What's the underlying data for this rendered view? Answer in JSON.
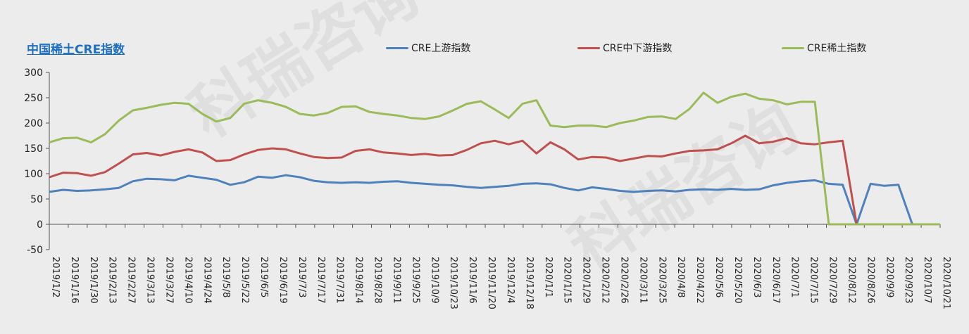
{
  "title": "中国稀土CRE指数",
  "chart_data": {
    "type": "line",
    "title": "中国稀土CRE指数",
    "ylim": [
      -50,
      300
    ],
    "yticks": [
      -50,
      0,
      50,
      100,
      150,
      200,
      250,
      300
    ],
    "x_tick_labels": [
      "2019/1/2",
      "2019/1/16",
      "2019/1/30",
      "2019/2/13",
      "2019/2/27",
      "2019/3/13",
      "2019/3/27",
      "2019/4/10",
      "2019/4/24",
      "2019/5/8",
      "2019/5/22",
      "2019/6/5",
      "2019/6/19",
      "2019/7/3",
      "2019/7/17",
      "2019/7/31",
      "2019/8/14",
      "2019/8/28",
      "2019/9/11",
      "2019/9/25",
      "2019/10/9",
      "2019/10/23",
      "2019/11/6",
      "2019/11/20",
      "2019/12/4",
      "2019/12/18",
      "2020/1/1",
      "2020/1/15",
      "2020/1/29",
      "2020/2/12",
      "2020/2/26",
      "2020/3/11",
      "2020/3/25",
      "2020/4/8",
      "2020/4/22",
      "2020/5/6",
      "2020/5/20",
      "2020/6/3",
      "2020/6/17",
      "2020/7/1",
      "2020/7/15",
      "2020/7/29",
      "2020/8/12",
      "2020/8/26",
      "2020/9/9",
      "2020/9/23",
      "2020/10/7",
      "2020/10/21"
    ],
    "grid": false,
    "legend_position": "top",
    "series": [
      {
        "name": "CRE上游指数",
        "color": "#4f81bd",
        "values": [
          64,
          68,
          66,
          67,
          69,
          72,
          85,
          90,
          89,
          87,
          96,
          92,
          88,
          78,
          83,
          94,
          92,
          97,
          93,
          86,
          83,
          82,
          83,
          82,
          84,
          85,
          82,
          80,
          78,
          77,
          74,
          72,
          74,
          76,
          80,
          81,
          79,
          72,
          67,
          73,
          70,
          66,
          64,
          66,
          67,
          65,
          68,
          69,
          68,
          70,
          68,
          69,
          77,
          82,
          85,
          87,
          80,
          78,
          0,
          80,
          76,
          78,
          0,
          0,
          0
        ]
      },
      {
        "name": "CRE中下游指数",
        "color": "#c0504d",
        "values": [
          93,
          102,
          101,
          96,
          103,
          120,
          138,
          141,
          136,
          143,
          148,
          142,
          125,
          127,
          138,
          147,
          150,
          148,
          140,
          133,
          131,
          132,
          145,
          148,
          142,
          140,
          137,
          139,
          136,
          137,
          147,
          160,
          165,
          158,
          165,
          140,
          162,
          148,
          128,
          133,
          132,
          125,
          130,
          135,
          134,
          140,
          145,
          146,
          148,
          160,
          175,
          160,
          163,
          170,
          160,
          158,
          162,
          165,
          0,
          0,
          0,
          0,
          0,
          0,
          0
        ]
      },
      {
        "name": "CRE稀土指数",
        "color": "#9bbb59",
        "values": [
          162,
          170,
          171,
          162,
          178,
          205,
          225,
          230,
          236,
          240,
          238,
          218,
          203,
          210,
          238,
          245,
          240,
          232,
          218,
          215,
          220,
          232,
          233,
          222,
          218,
          215,
          210,
          208,
          213,
          225,
          238,
          243,
          227,
          210,
          238,
          245,
          195,
          192,
          195,
          195,
          192,
          200,
          205,
          212,
          213,
          208,
          228,
          260,
          240,
          252,
          258,
          248,
          245,
          237,
          242,
          242,
          0,
          0,
          0,
          0,
          0,
          0,
          0,
          0,
          0
        ]
      }
    ]
  },
  "watermark": "科瑞咨询"
}
